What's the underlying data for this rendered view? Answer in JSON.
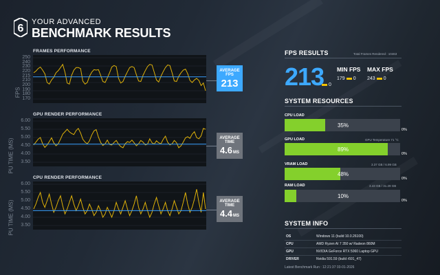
{
  "header": {
    "logo_digit": "6",
    "title_top": "YOUR ADVANCED",
    "title_main": "BENCHMARK RESULTS"
  },
  "frames_chart": {
    "title": "FRAMES PERFORMANCE",
    "ylabel": "FPS",
    "ticks": [
      "250",
      "240",
      "230",
      "220",
      "215",
      "210",
      "200",
      "190",
      "180",
      "170"
    ],
    "metric_label": "AVERAGE FPS",
    "metric_value": "213"
  },
  "gpu_chart_1": {
    "title": "GPU RENDER PERFORMANCE",
    "ylabel": "PU TIME (MS)",
    "ticks": [
      "6.00",
      "5.50",
      "5.00",
      "4.50",
      "4.00",
      "3.50"
    ],
    "metric_label": "AVERAGE TIME",
    "metric_value": "4.6",
    "metric_unit": "MS"
  },
  "gpu_chart_2": {
    "title": "CPU RENDER PERFORMANCE",
    "ylabel": "PU TIME (MS)",
    "ticks": [
      "6.00",
      "5.50",
      "5.00",
      "4.50",
      "4.00",
      "3.50"
    ],
    "metric_label": "AVERAGE TIME",
    "metric_value": "4.4",
    "metric_unit": "MS"
  },
  "fps_results": {
    "title": "FPS RESULTS",
    "total_frames": "Total Frames Rendered : 10463",
    "average": "213",
    "average_suffix": "0",
    "min_label": "MIN FPS",
    "min_value": "179",
    "min_suffix": "0",
    "max_label": "MAX FPS",
    "max_value": "243",
    "max_suffix": "0"
  },
  "system_resources": {
    "title": "SYSTEM RESOURCES",
    "items": [
      {
        "label": "CPU LOAD",
        "note": "",
        "percent_text": "35%",
        "percent": 35,
        "zero": "0%"
      },
      {
        "label": "GPU LOAD",
        "note": "GPU Temperature 71 °C",
        "percent_text": "89%",
        "percent": 89,
        "zero": "0%"
      },
      {
        "label": "VRAM LOAD",
        "note": "3.37 GB / 6.99 GB",
        "percent_text": "48%",
        "percent": 48,
        "zero": "0%"
      },
      {
        "label": "RAM LOAD",
        "note": "3.43 GB / 31.29 GB",
        "percent_text": "10%",
        "percent": 10,
        "zero": "0%"
      }
    ]
  },
  "system_info": {
    "title": "SYSTEM INFO",
    "rows": [
      {
        "key": "OS",
        "value": "Windows 11 (build 10.0.26100)"
      },
      {
        "key": "CPU",
        "value": "AMD Ryzen AI 7 350 w/ Radeon 860M"
      },
      {
        "key": "GPU",
        "value": "NVIDIA GeForce RTX 5060 Laptop GPU"
      },
      {
        "key": "DRIVER",
        "value": "Nvidia 591.59 (build r591_47)"
      }
    ],
    "latest_run": "Latest Benchmark Run : 12:21:37 03-01-2026"
  },
  "colors": {
    "accent_blue": "#3da9ff",
    "trace_yellow": "#e0b20a",
    "avg_line_blue": "#3aa0ff",
    "bar_green": "#84d02c",
    "metric_box_grey": "#6f747c"
  },
  "chart_data": [
    {
      "type": "line",
      "title": "FRAMES PERFORMANCE",
      "ylabel": "FPS",
      "ylim": [
        170,
        250
      ],
      "average": 213,
      "series": [
        {
          "values": [
            221,
            224,
            229,
            232,
            226,
            219,
            202,
            199,
            207,
            212,
            221,
            225,
            231,
            237,
            222,
            201,
            199,
            216,
            226,
            231,
            231,
            229,
            205,
            199,
            202,
            214,
            222,
            227,
            226,
            227,
            216,
            204,
            202,
            211,
            221,
            232,
            235,
            233,
            210,
            201,
            204,
            214,
            223,
            231,
            233,
            231,
            217,
            205,
            204,
            216,
            225,
            233,
            237,
            236,
            222,
            207,
            203,
            214,
            223,
            231,
            236,
            235,
            221,
            205,
            204,
            214,
            221,
            226,
            228,
            219,
            206,
            202,
            207,
            210,
            206,
            196,
            201,
            186
          ]
        }
      ]
    },
    {
      "type": "line",
      "title": "GPU RENDER PERFORMANCE",
      "ylabel": "PU TIME (MS)",
      "ylim": [
        3.5,
        6.0
      ],
      "average": 4.6,
      "series": [
        {
          "values": [
            4.55,
            4.72,
            4.9,
            5.0,
            4.62,
            4.4,
            4.55,
            4.75,
            4.98,
            4.68,
            4.5,
            4.62,
            4.9,
            5.2,
            5.35,
            5.5,
            5.34,
            5.24,
            5.18,
            5.42,
            5.55,
            5.28,
            4.9,
            4.72,
            4.62,
            4.8,
            5.15,
            5.4,
            5.48,
            5.02,
            4.7,
            4.52,
            4.62,
            4.84,
            4.58,
            4.55,
            4.7,
            4.82,
            4.6,
            4.45,
            4.38,
            4.62,
            4.75,
            4.7,
            4.84,
            4.68,
            4.5,
            4.62,
            4.82,
            4.72,
            4.55,
            4.6,
            4.92,
            4.68,
            4.6,
            4.8,
            4.68,
            4.62,
            4.88,
            5.08,
            4.72,
            4.55,
            4.62,
            4.82,
            4.68,
            4.38,
            4.5,
            4.72,
            4.98,
            5.05,
            4.95,
            5.2,
            5.35,
            5.0,
            4.92,
            5.1,
            5.55,
            5.5
          ]
        }
      ]
    },
    {
      "type": "line",
      "title": "CPU RENDER PERFORMANCE",
      "ylabel": "PU TIME (MS)",
      "ylim": [
        3.5,
        6.0
      ],
      "average": 4.4,
      "series": [
        {
          "values": [
            4.5,
            4.8,
            5.2,
            5.5,
            4.9,
            4.6,
            5.0,
            5.4,
            4.8,
            4.3,
            4.6,
            5.0,
            5.3,
            4.7,
            4.2,
            4.5,
            4.9,
            5.3,
            4.8,
            4.4,
            4.7,
            5.1,
            4.6,
            4.2,
            4.4,
            4.8,
            4.5,
            4.1,
            4.3,
            4.7,
            4.4,
            4.0,
            4.2,
            4.6,
            4.3,
            4.0,
            4.4,
            4.9,
            4.5,
            4.2,
            4.6,
            5.0,
            4.5,
            4.1,
            4.4,
            4.8,
            5.3,
            4.6,
            4.2,
            4.5,
            4.9,
            4.4,
            4.0,
            4.3,
            4.8,
            5.2,
            4.7,
            4.2,
            4.5,
            4.9,
            4.4,
            4.1,
            4.5,
            5.0,
            4.6,
            4.2,
            4.4,
            4.9,
            5.5,
            4.8,
            4.3,
            4.6,
            5.1,
            5.7,
            4.9,
            4.3,
            5.5,
            4.5
          ]
        }
      ]
    }
  ]
}
